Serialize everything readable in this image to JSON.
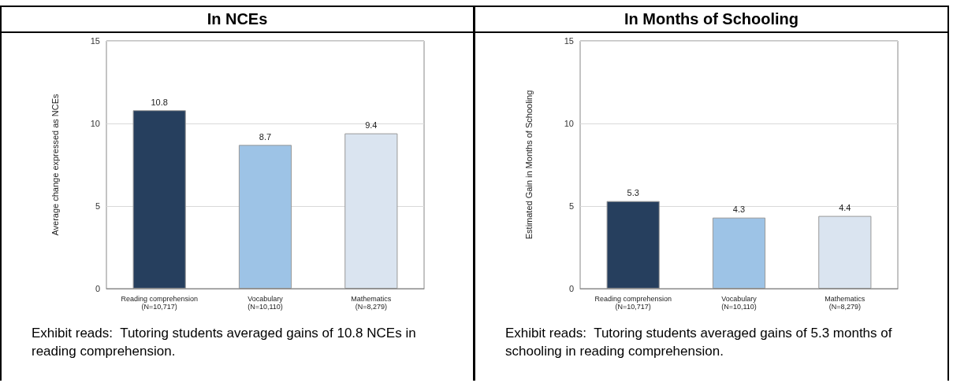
{
  "chart_data": [
    {
      "type": "bar",
      "title": "In NCEs",
      "ylabel": "Average change expressed as NCEs",
      "categories": [
        "Reading comprehension\n(N=10,717)",
        "Vocabulary\n(N=10,110)",
        "Mathematics\n(N=8,279)"
      ],
      "values": [
        10.8,
        8.7,
        9.4
      ],
      "colors": [
        "#263f5e",
        "#9dc3e6",
        "#dae4f0"
      ],
      "ylim": [
        0,
        15
      ],
      "yticks": [
        0,
        5,
        10,
        15
      ],
      "grid": "y",
      "data_labels": true,
      "annotations": [
        "Exhibit reads:  Tutoring students averaged gains of 10.8 NCEs in reading comprehension."
      ]
    },
    {
      "type": "bar",
      "title": "In Months of Schooling",
      "ylabel": "Estimated Gain in Months of Schooling",
      "categories": [
        "Reading comprehension\n(N=10,717)",
        "Vocabulary\n(N=10,110)",
        "Mathematics\n(N=8,279)"
      ],
      "values": [
        5.3,
        4.3,
        4.4
      ],
      "colors": [
        "#263f5e",
        "#9dc3e6",
        "#dae4f0"
      ],
      "ylim": [
        0,
        15
      ],
      "yticks": [
        0,
        5,
        10,
        15
      ],
      "grid": "y",
      "data_labels": true,
      "annotations": [
        "Exhibit reads:  Tutoring students averaged gains of 5.3 months of schooling in reading comprehension."
      ]
    }
  ]
}
